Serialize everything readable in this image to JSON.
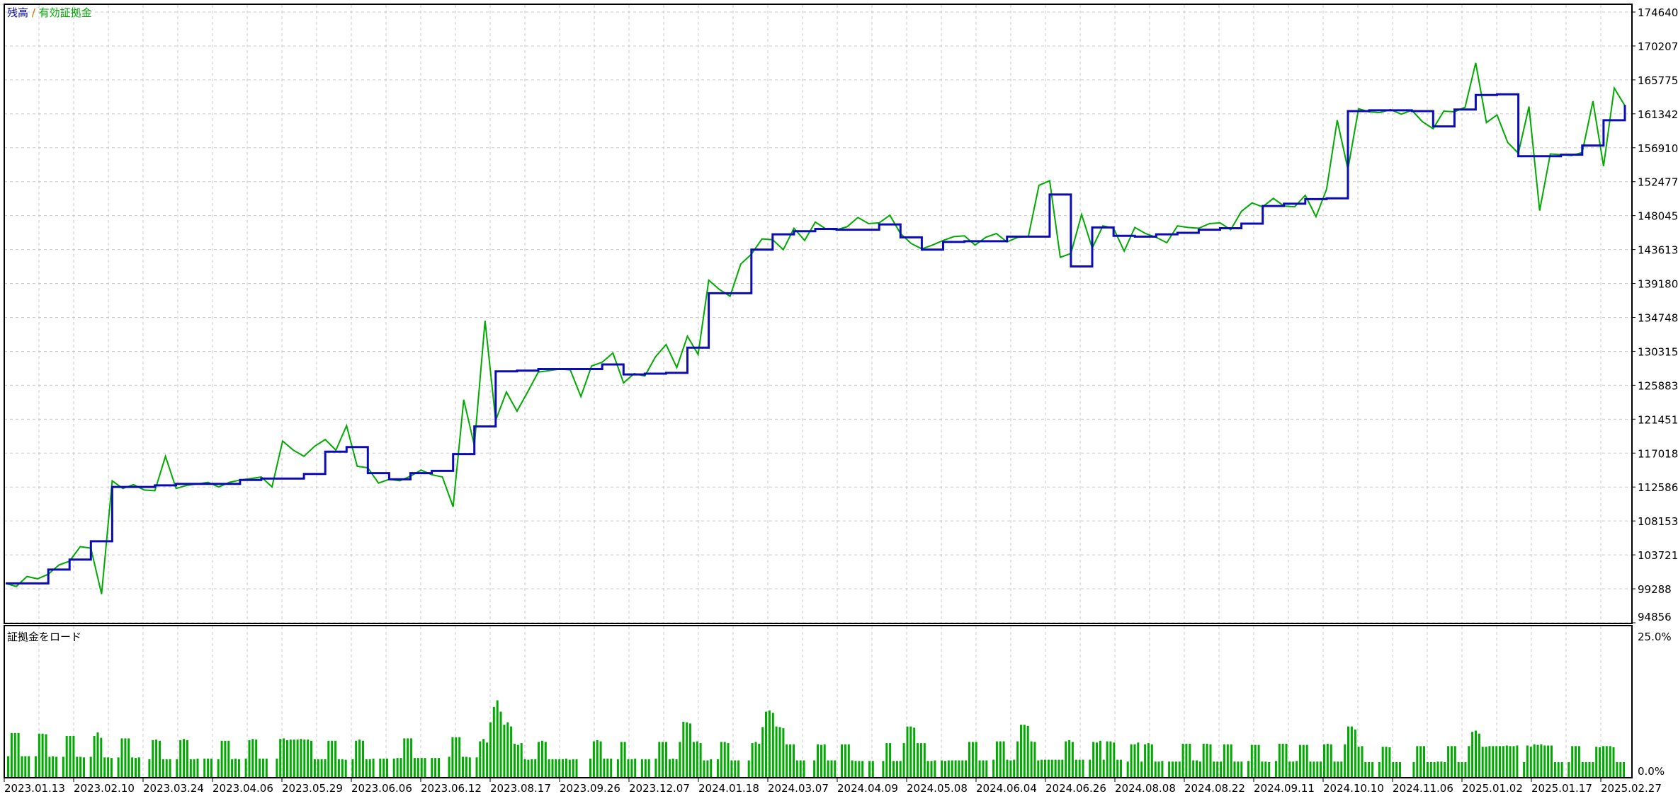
{
  "chart_data": [
    {
      "type": "line",
      "legend": {
        "position": "top-left",
        "separator": "/"
      },
      "y_ticks": [
        174640,
        170207,
        165775,
        161342,
        156910,
        152477,
        148045,
        143613,
        139180,
        134748,
        130315,
        125883,
        121451,
        117018,
        112586,
        108153,
        103721,
        99288,
        94856
      ],
      "ylim": [
        94856,
        174640
      ],
      "x_ticks": [
        "2023.01.13",
        "2023.02.10",
        "2023.03.24",
        "2023.04.06",
        "2023.05.29",
        "2023.06.06",
        "2023.06.12",
        "2023.08.17",
        "2023.09.26",
        "2023.12.07",
        "2024.01.18",
        "2024.03.07",
        "2024.04.09",
        "2024.05.08",
        "2024.06.04",
        "2024.06.26",
        "2024.08.08",
        "2024.08.22",
        "2024.09.11",
        "2024.10.10",
        "2024.11.06",
        "2025.01.02",
        "2025.01.17",
        "2025.02.27"
      ],
      "grid": true,
      "series": [
        {
          "name": "残高",
          "color": "#0c0cb4",
          "values": [
            100000,
            100000,
            101800,
            103100,
            105500,
            112600,
            112600,
            112800,
            113000,
            113000,
            113000,
            113500,
            113700,
            113700,
            114300,
            117200,
            117800,
            114400,
            113600,
            114400,
            114700,
            116900,
            120500,
            127700,
            127800,
            128000,
            128000,
            128000,
            128600,
            127300,
            127400,
            127500,
            130800,
            137900,
            137900,
            143600,
            145600,
            146000,
            146300,
            146200,
            146200,
            146900,
            145200,
            143600,
            144600,
            144700,
            144700,
            145300,
            145300,
            150800,
            141400,
            146500,
            145400,
            145300,
            145600,
            145800,
            146200,
            146400,
            147000,
            149300,
            149600,
            150200,
            150300,
            161700,
            161800,
            161800,
            161700,
            159700,
            161900,
            163800,
            163900,
            155800,
            155800,
            156000,
            157200,
            160500,
            162500
          ]
        },
        {
          "name": "有効証拠金",
          "color": "#00aa00",
          "values": [
            100000,
            99600,
            100900,
            100600,
            101200,
            102400,
            102900,
            104800,
            104600,
            98600,
            113400,
            112400,
            112900,
            112200,
            112100,
            116600,
            112400,
            112800,
            113000,
            113200,
            112600,
            113200,
            113500,
            113700,
            113900,
            112600,
            118600,
            117400,
            116600,
            117900,
            118800,
            117400,
            120600,
            115300,
            115100,
            113100,
            113600,
            113400,
            114000,
            114800,
            114200,
            113900,
            110000,
            124000,
            118000,
            134300,
            121300,
            125000,
            122500,
            125000,
            127600,
            127800,
            128000,
            127900,
            124400,
            128400,
            128900,
            130100,
            126200,
            127400,
            127100,
            129600,
            131200,
            128200,
            132300,
            129900,
            139600,
            138400,
            137500,
            141700,
            143000,
            145000,
            144900,
            143600,
            146400,
            144800,
            147200,
            146300,
            146200,
            146600,
            147800,
            147000,
            147100,
            148100,
            145700,
            144400,
            143700,
            144200,
            144800,
            145300,
            145400,
            144200,
            145200,
            145700,
            144600,
            145200,
            145300,
            152000,
            152600,
            142600,
            143100,
            148200,
            143800,
            146700,
            146400,
            143400,
            146500,
            145700,
            145200,
            144500,
            146700,
            146500,
            146400,
            147000,
            147100,
            146200,
            148600,
            149700,
            149200,
            150300,
            149300,
            149200,
            150700,
            147900,
            151500,
            160500,
            154100,
            162000,
            161600,
            161500,
            161900,
            161300,
            161800,
            160300,
            159400,
            161700,
            161600,
            162200,
            168000,
            160200,
            161200,
            157600,
            156200,
            162300,
            148700,
            156100,
            156000,
            155900,
            156300,
            163000,
            154500,
            164700,
            162400
          ]
        }
      ]
    },
    {
      "type": "bar",
      "title": "証拠金をロード",
      "y_ticks": [
        "25.0%",
        "0.0%"
      ],
      "ylim": [
        0,
        25
      ],
      "color": "#00aa00",
      "values": [
        3.5,
        7.4,
        7.4,
        7.4,
        3.5,
        3.5,
        3.5,
        0,
        3.5,
        7.3,
        7.3,
        7.2,
        3.4,
        3.5,
        3.4,
        0,
        3.4,
        6.9,
        6.9,
        6.9,
        3.4,
        3.4,
        3.3,
        0,
        3.4,
        6.9,
        7.5,
        6.6,
        3.3,
        3.3,
        3.2,
        0,
        3.3,
        6.5,
        6.5,
        6.5,
        3.3,
        3.2,
        3.3,
        0,
        0,
        3.0,
        6.2,
        6.3,
        6.1,
        3.0,
        3.0,
        3.0,
        0,
        3.0,
        6.2,
        6.4,
        6.2,
        3.0,
        3.0,
        3.1,
        0,
        3.1,
        3.1,
        3.1,
        0,
        3.0,
        6.1,
        6.1,
        6.1,
        3.0,
        3.1,
        3.0,
        0,
        3.1,
        6.2,
        6.4,
        6.3,
        3.1,
        3.1,
        3.1,
        0,
        0,
        3.1,
        6.4,
        6.5,
        6.2,
        6.3,
        6.3,
        6.3,
        6.4,
        6.3,
        6.3,
        6.1,
        3.0,
        3.0,
        3.0,
        3.0,
        6.1,
        6.1,
        6.1,
        3.0,
        3.0,
        2.9,
        0,
        3.0,
        6.1,
        6.3,
        6.1,
        3.0,
        3.0,
        3.1,
        0,
        3.1,
        3.1,
        3.1,
        0,
        3.1,
        3.2,
        3.2,
        6.5,
        6.5,
        6.5,
        3.2,
        3.2,
        3.2,
        3.2,
        0,
        3.2,
        3.2,
        3.2,
        0,
        0,
        3.4,
        6.7,
        6.7,
        6.7,
        3.4,
        3.4,
        3.3,
        0,
        3.3,
        6.0,
        6.4,
        5.8,
        9.2,
        11.8,
        12.9,
        11.0,
        8.8,
        9.2,
        8.5,
        5.6,
        5.4,
        5.7,
        3.0,
        2.9,
        3.0,
        3.0,
        5.9,
        6.1,
        5.9,
        3.0,
        3.0,
        3.0,
        3.0,
        3.0,
        3.1,
        2.9,
        3.0,
        3.0,
        0,
        0,
        0,
        3.1,
        6.0,
        6.2,
        6.0,
        3.1,
        3.1,
        3.1,
        0,
        3.0,
        5.9,
        5.9,
        3.0,
        3.0,
        3.1,
        0,
        3.0,
        3.0,
        3.0,
        0,
        3.1,
        5.9,
        5.9,
        5.9,
        3.0,
        3.1,
        3.0,
        5.9,
        9.3,
        9.2,
        9.0,
        5.9,
        6.0,
        5.7,
        2.8,
        2.8,
        3.0,
        0,
        3.0,
        5.9,
        5.9,
        5.7,
        2.8,
        2.8,
        2.8,
        0,
        0,
        2.8,
        5.7,
        5.9,
        5.6,
        8.4,
        11.0,
        11.2,
        10.8,
        8.5,
        8.4,
        8.2,
        5.5,
        5.5,
        5.5,
        2.8,
        2.8,
        2.8,
        0,
        0,
        2.8,
        5.5,
        5.4,
        5.5,
        2.8,
        2.8,
        2.8,
        0,
        5.5,
        5.5,
        5.5,
        2.8,
        2.7,
        2.7,
        2.7,
        0,
        2.7,
        2.7,
        0,
        0,
        2.7,
        5.7,
        5.7,
        2.7,
        2.7,
        2.7,
        5.7,
        8.5,
        8.5,
        8.3,
        5.7,
        5.7,
        5.7,
        2.7,
        2.7,
        2.8,
        0,
        2.8,
        2.7,
        2.8,
        2.8,
        2.8,
        2.8,
        2.8,
        2.8,
        5.9,
        5.9,
        5.9,
        2.8,
        2.8,
        2.8,
        0,
        2.9,
        6.0,
        6.0,
        6.0,
        2.9,
        2.8,
        2.9,
        6.0,
        8.8,
        8.8,
        8.6,
        6.0,
        5.9,
        2.8,
        2.9,
        2.9,
        2.9,
        2.9,
        2.9,
        2.9,
        2.9,
        6.0,
        6.2,
        5.9,
        2.9,
        2.9,
        2.9,
        0,
        2.9,
        5.9,
        5.8,
        6.1,
        2.9,
        6.0,
        6.0,
        5.8,
        2.9,
        2.9,
        0,
        2.6,
        5.5,
        5.5,
        5.8,
        2.6,
        5.5,
        5.7,
        5.5,
        2.6,
        2.6,
        2.7,
        0,
        2.6,
        2.6,
        2.6,
        2.6,
        5.6,
        5.6,
        5.6,
        2.8,
        2.8,
        2.6,
        5.6,
        5.6,
        5.5,
        2.6,
        2.6,
        2.6,
        5.5,
        5.5,
        5.5,
        2.6,
        2.6,
        2.6,
        0,
        2.7,
        5.4,
        5.4,
        5.4,
        2.6,
        2.6,
        2.5,
        0,
        2.7,
        5.6,
        5.6,
        5.6,
        2.6,
        2.6,
        2.7,
        5.4,
        5.4,
        5.4,
        2.6,
        2.6,
        2.6,
        2.6,
        5.5,
        5.6,
        5.5,
        2.6,
        2.6,
        2.6,
        5.5,
        8.5,
        8.5,
        8.0,
        5.1,
        5.2,
        2.5,
        2.5,
        2.5,
        0,
        2.5,
        5.1,
        5.1,
        5.0,
        2.5,
        2.5,
        2.5,
        0,
        0,
        0,
        2.5,
        5.2,
        5.2,
        5.2,
        2.5,
        2.5,
        2.5,
        2.6,
        2.6,
        2.5,
        5.2,
        5.2,
        5.2,
        2.5,
        2.5,
        2.5,
        5.2,
        7.6,
        7.8,
        7.3,
        5.1,
        5.1,
        5.2,
        5.2,
        5.2,
        5.2,
        5.2,
        5.3,
        5.2,
        5.2,
        5.3,
        0,
        2.5,
        5.3,
        5.1,
        5.5,
        5.4,
        5.5,
        5.3,
        5.3,
        5.3,
        2.5,
        2.5,
        2.5,
        0,
        2.5,
        5.2,
        5.2,
        5.2,
        2.5,
        2.5,
        2.5,
        2.5,
        5.1,
        5.0,
        5.2,
        5.2,
        5.2,
        5.0,
        2.5,
        2.5,
        2.5
      ]
    }
  ]
}
